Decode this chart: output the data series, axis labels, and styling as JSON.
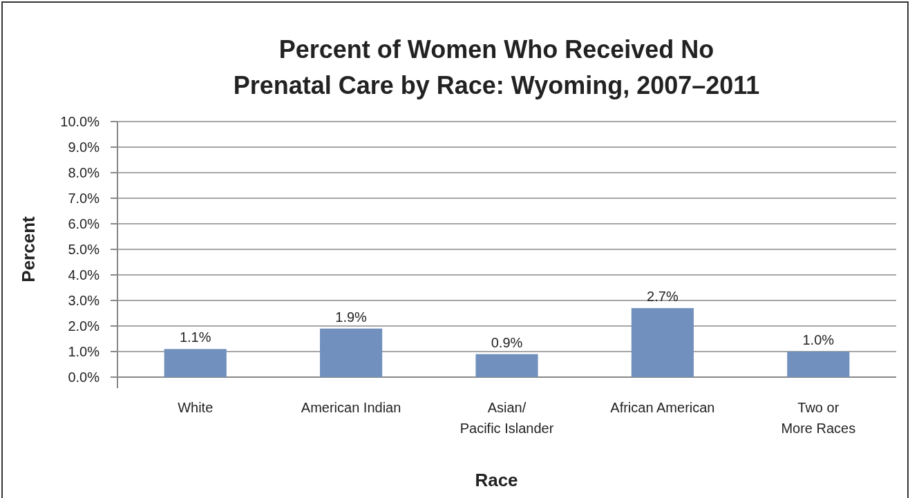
{
  "chart_data": {
    "type": "bar",
    "title": "Percent of Women Who Received No\nPrenatal Care by Race: Wyoming, 2007–2011",
    "xlabel": "Race",
    "ylabel": "Percent",
    "categories": [
      "White",
      "American Indian",
      "Asian/\nPacific Islander",
      "African American",
      "Two or\nMore Races"
    ],
    "values": [
      1.1,
      1.9,
      0.9,
      2.7,
      1.0
    ],
    "color": "#7190bd",
    "value_labels": [
      "1.1%",
      "1.9%",
      "0.9%",
      "2.7%",
      "1.0%"
    ],
    "ylim": [
      0,
      10
    ],
    "yticks": [
      {
        "value": 0,
        "label": "0.0%"
      },
      {
        "value": 1,
        "label": "1.0%"
      },
      {
        "value": 2,
        "label": "2.0%"
      },
      {
        "value": 3,
        "label": "3.0%"
      },
      {
        "value": 4,
        "label": "4.0%"
      },
      {
        "value": 5,
        "label": "5.0%"
      },
      {
        "value": 6,
        "label": "6.0%"
      },
      {
        "value": 7,
        "label": "7.0%"
      },
      {
        "value": 8,
        "label": "8.0%"
      },
      {
        "value": 9,
        "label": "9.0%"
      },
      {
        "value": 10,
        "label": "10.0%"
      }
    ],
    "grid": "y"
  }
}
